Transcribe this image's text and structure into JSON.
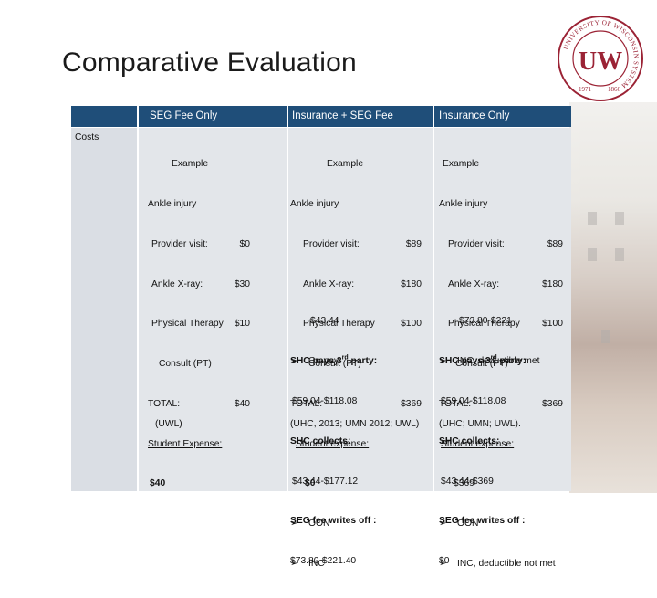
{
  "slide": {
    "title": "Comparative Evaluation"
  },
  "header": {
    "col1": "SEG Fee Only",
    "col2": "Insurance + SEG Fee",
    "col3": "Insurance Only"
  },
  "row_label": "Costs",
  "seg": {
    "example": "Example",
    "case": "Ankle injury",
    "items": [
      {
        "label": "Provider visit:",
        "value": "$0"
      },
      {
        "label": "Ankle X-ray:",
        "value": "$30"
      },
      {
        "label": "Physical Therapy",
        "value": "$10"
      }
    ],
    "consult": "Consult (PT)",
    "total_label": "TOTAL:",
    "total_value": "$40",
    "expense_label": "Student Expense:",
    "expense_value": "$40",
    "source": "(UWL)"
  },
  "ins_seg": {
    "example": "Example",
    "case": "Ankle injury",
    "items": [
      {
        "label": "Provider visit:",
        "value": "$89"
      },
      {
        "label": "Ankle X-ray:",
        "value": "$180"
      },
      {
        "label": "Physical Therapy",
        "value": "$100"
      }
    ],
    "consult": "Consult (PT)",
    "total_label": "TOTAL:",
    "total_value": "$369",
    "expense_label": "Student expense:",
    "expense_value": "$0",
    "bullets": [
      "OON",
      "INC"
    ],
    "copay_amount": "$43.44",
    "copay_label": "Co-pay",
    "shc_pays_pre": "SHC pays 3",
    "shc_pays_sup": "rd",
    "shc_pays_post": " party:",
    "shc_pays_value": "$59.04-$118.08",
    "shc_collects_label": "SHC collects:",
    "shc_collects_value": "$43.44-$177.12",
    "seg_writes_label": "SEG fee writes off :",
    "seg_writes_value": "$73.80-$221.40",
    "source": "(UHC, 2013; UMN 2012; UWL)"
  },
  "ins_only": {
    "example": "Example",
    "case": "Ankle injury",
    "items": [
      {
        "label": "Provider visit:",
        "value": "$89"
      },
      {
        "label": "Ankle X-ray:",
        "value": "$180"
      },
      {
        "label": "Physical Therapy",
        "value": "$100"
      }
    ],
    "consult": "Consult (PT)",
    "total_label": "TOTAL:",
    "total_value": "$369",
    "expense_label": "Student expense:",
    "expense_value": "$369",
    "bullets": [
      "OON",
      "INC, deductible not met"
    ],
    "range": "$73.80-$221",
    "range_label": "INC, deductible met",
    "shc_pays_pre": "SHC pays 3",
    "shc_pays_sup": "rd",
    "shc_pays_post": " party:",
    "shc_pays_value": "$59.04-$118.08",
    "shc_collects_label": "SHC collects:",
    "shc_collects_value": "$43.44-$369",
    "seg_writes_label": "SEG fee writes off :",
    "seg_writes_value": "$0",
    "source": "(UHC; UMN; UWL)."
  },
  "logo": {
    "letters": "UW",
    "ring_text": "UNIVERSITY OF WISCONSIN SYSTEM",
    "year_left": "1971",
    "year_right": "1866",
    "color": "#9b2335"
  },
  "colors": {
    "header": "#1f4e79",
    "body": "#e3e6ea",
    "accent": "#9b2335"
  }
}
